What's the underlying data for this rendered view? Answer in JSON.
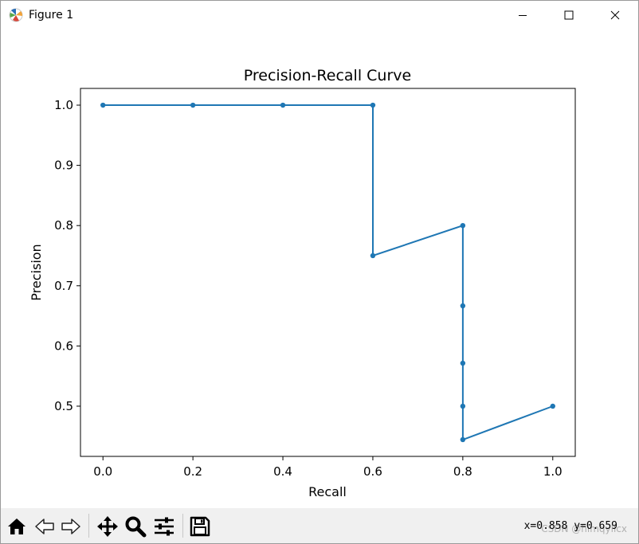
{
  "window": {
    "title": "Figure 1",
    "icons": {
      "app": "matplotlib-icon",
      "minimize": "minimize-icon",
      "maximize": "maximize-icon",
      "close": "close-icon"
    }
  },
  "toolbar": {
    "buttons": [
      "home-icon",
      "back-arrow-icon",
      "forward-arrow-icon",
      "pan-icon",
      "zoom-icon",
      "configure-subplots-icon",
      "save-icon"
    ],
    "coords": "x=0.858 y=0.659",
    "watermark": "CSDN @himqylicx"
  },
  "chart_data": {
    "type": "line",
    "title": "Precision-Recall Curve",
    "xlabel": "Recall",
    "ylabel": "Precision",
    "x": [
      0.0,
      0.2,
      0.4,
      0.6,
      0.6,
      0.8,
      0.8,
      0.8,
      0.8,
      0.8,
      1.0
    ],
    "y": [
      1.0,
      1.0,
      1.0,
      1.0,
      0.75,
      0.8,
      0.6667,
      0.5714,
      0.5,
      0.4444,
      0.5
    ],
    "xlim": [
      -0.05,
      1.05
    ],
    "ylim": [
      0.4166,
      1.0278
    ],
    "xticks": [
      "0.0",
      "0.2",
      "0.4",
      "0.6",
      "0.8",
      "1.0"
    ],
    "yticks": [
      "0.5",
      "0.6",
      "0.7",
      "0.8",
      "0.9",
      "1.0"
    ],
    "marker": "dot",
    "color": "#1f77b4",
    "grid": false
  }
}
